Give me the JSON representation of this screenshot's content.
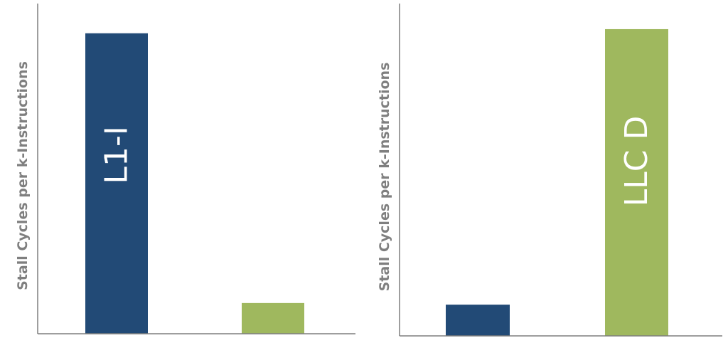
{
  "chart_data": [
    {
      "type": "bar",
      "ylabel": "Stall Cycles per k-Instructions",
      "xlabel": "",
      "ylim": [
        0,
        100
      ],
      "grid": false,
      "colors": [
        "#224a76",
        "#9fb85e"
      ],
      "values": [
        91,
        9.3
      ],
      "bar_labels": [
        "L1-I",
        ""
      ]
    },
    {
      "type": "bar",
      "ylabel": "Stall Cycles per k-Instructions",
      "xlabel": "",
      "ylim": [
        0,
        100
      ],
      "grid": false,
      "colors": [
        "#224a76",
        "#9fb85e"
      ],
      "values": [
        9.4,
        92.3
      ],
      "bar_labels": [
        "",
        "LLC D"
      ]
    }
  ]
}
